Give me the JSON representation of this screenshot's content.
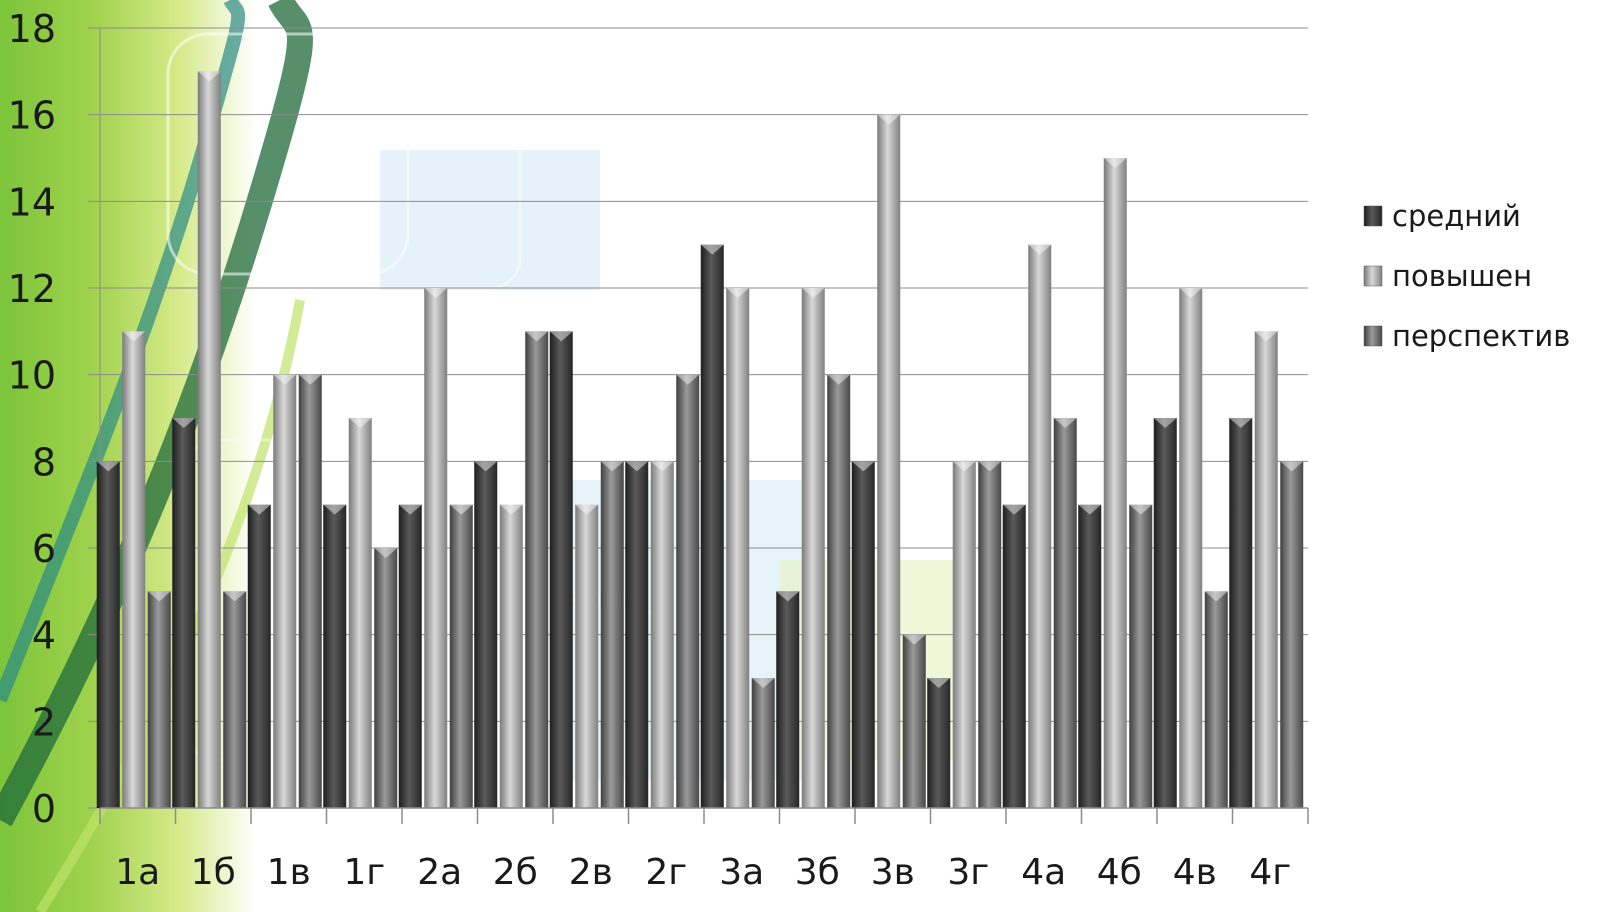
{
  "chart_data": {
    "type": "bar",
    "title": "",
    "xlabel": "",
    "ylabel": "",
    "ylim": [
      0,
      18
    ],
    "yticks": [
      0,
      2,
      4,
      6,
      8,
      10,
      12,
      14,
      16,
      18
    ],
    "grid": true,
    "legend_position": "right",
    "categories": [
      "1а",
      "1б",
      "1в",
      "1г",
      "2а",
      "2б",
      "2в",
      "2г",
      "3а",
      "3б",
      "3в",
      "3г",
      "4а",
      "4б",
      "4в",
      "4г"
    ],
    "series": [
      {
        "name": "средний",
        "color": "#3a3a3a",
        "values": [
          8,
          9,
          7,
          7,
          7,
          8,
          11,
          8,
          13,
          5,
          8,
          3,
          7,
          7,
          9,
          9
        ]
      },
      {
        "name": "повышен",
        "color": "#a8a8a8",
        "values": [
          11,
          17,
          10,
          9,
          12,
          7,
          7,
          8,
          12,
          12,
          16,
          8,
          13,
          15,
          12,
          11
        ]
      },
      {
        "name": "перспектив",
        "color": "#6e6e6e",
        "values": [
          5,
          5,
          10,
          6,
          7,
          11,
          8,
          10,
          3,
          10,
          4,
          8,
          9,
          7,
          5,
          8
        ]
      }
    ]
  }
}
